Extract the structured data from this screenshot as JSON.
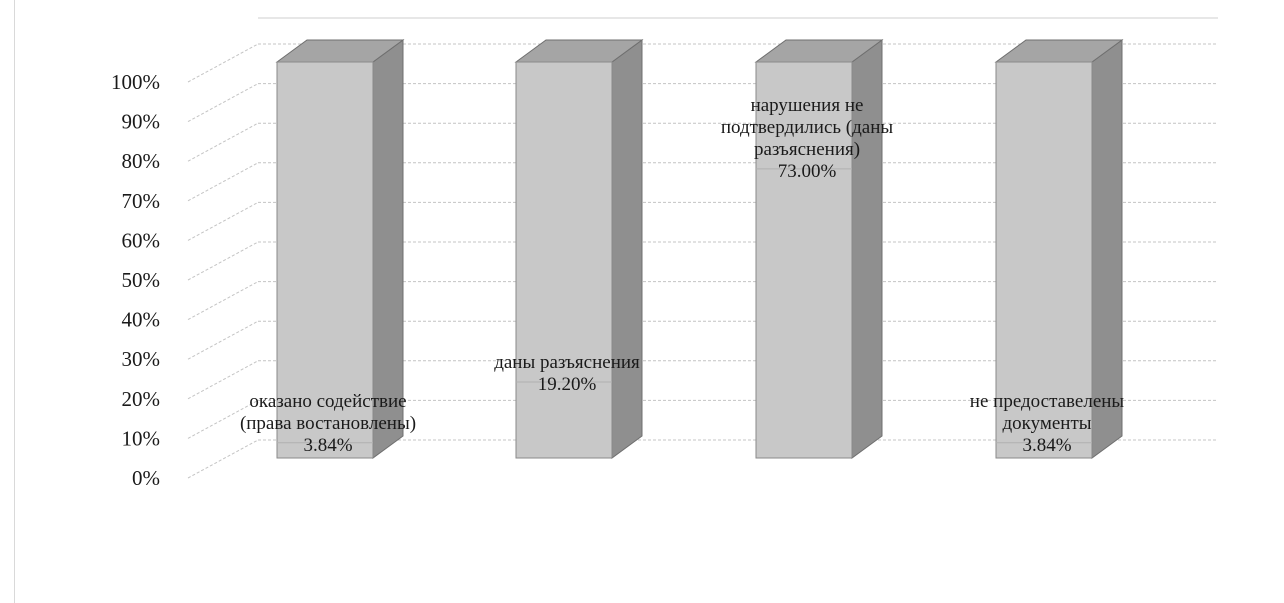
{
  "chart_data": {
    "type": "bar",
    "stacked": "100%",
    "three_d": true,
    "title": "",
    "xlabel": "",
    "ylabel": "",
    "ylim": [
      0,
      100
    ],
    "y_ticks": [
      "0%",
      "10%",
      "20%",
      "30%",
      "40%",
      "50%",
      "60%",
      "70%",
      "80%",
      "90%",
      "100%"
    ],
    "grid": true,
    "legend": "none",
    "bar_color": "#c8c8c8",
    "side_color": "#8f8f8f",
    "top_color": "#a5a5a5",
    "series": [
      {
        "label_lines": [
          "оказано содействие",
          "(права востановлены)",
          "3.84%"
        ],
        "value": 3.84
      },
      {
        "label_lines": [
          "даны разъяснения",
          "19.20%"
        ],
        "value": 19.2
      },
      {
        "label_lines": [
          "нарушения не",
          "подтвердились (даны",
          "разъяснения)",
          "73.00%"
        ],
        "value": 73.0
      },
      {
        "label_lines": [
          "не предоставелены",
          "документы",
          "3.84%"
        ],
        "value": 3.84
      }
    ]
  }
}
